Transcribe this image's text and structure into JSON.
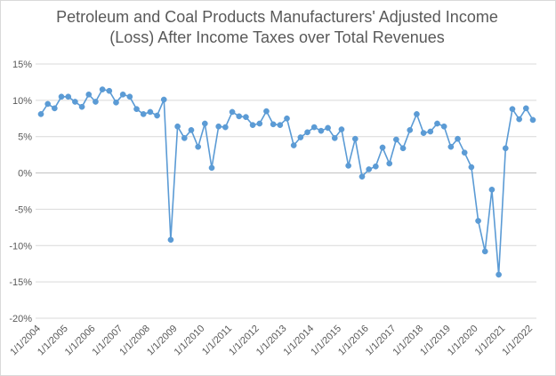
{
  "chart_data": {
    "type": "line",
    "title_lines": [
      "Petroleum and Coal Products Manufacturers' Adjusted Income",
      "(Loss) After Income Taxes over Total Revenues"
    ],
    "xlabel": "",
    "ylabel": "",
    "y_ticks": [
      "15%",
      "10%",
      "5%",
      "0%",
      "-5%",
      "-10%",
      "-15%",
      "-20%"
    ],
    "ylim": [
      -20,
      15
    ],
    "x_ticks": [
      "1/1/2004",
      "1/1/2005",
      "1/1/2006",
      "1/1/2007",
      "1/1/2008",
      "1/1/2009",
      "1/1/2010",
      "1/1/2011",
      "1/1/2012",
      "1/1/2013",
      "1/1/2014",
      "1/1/2015",
      "1/1/2016",
      "1/1/2017",
      "1/1/2018",
      "1/1/2019",
      "1/1/2020",
      "1/1/2021",
      "1/1/2022"
    ],
    "grid": "horizontal",
    "series_color": "#5b9bd5",
    "values": [
      8.1,
      9.5,
      8.9,
      10.5,
      10.5,
      9.8,
      9.1,
      10.8,
      9.8,
      11.5,
      11.3,
      9.7,
      10.8,
      10.5,
      8.8,
      8.1,
      8.4,
      7.9,
      10.1,
      -9.2,
      6.4,
      4.8,
      5.9,
      3.6,
      6.8,
      0.7,
      6.4,
      6.3,
      8.4,
      7.8,
      7.7,
      6.6,
      6.8,
      8.5,
      6.7,
      6.6,
      7.5,
      3.8,
      4.9,
      5.6,
      6.3,
      5.8,
      6.2,
      4.8,
      6.0,
      1.0,
      4.7,
      -0.5,
      0.5,
      0.9,
      3.5,
      1.3,
      4.6,
      3.4,
      5.9,
      8.1,
      5.5,
      5.7,
      6.8,
      6.4,
      3.6,
      4.7,
      2.8,
      0.8,
      -6.6,
      -10.8,
      -2.3,
      -14.0,
      3.4,
      8.8,
      7.4,
      8.9,
      7.3
    ]
  }
}
